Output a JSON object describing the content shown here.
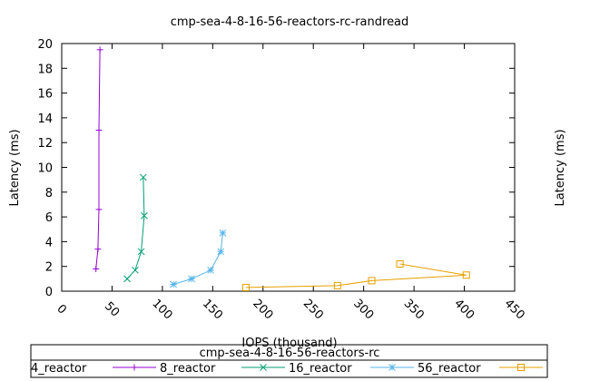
{
  "chart_data": {
    "type": "line",
    "title": "cmp-sea-4-8-16-56-reactors-rc-randread",
    "xlabel": "IOPS (thousand)",
    "ylabel": "Latency (ms)",
    "y2label": "Latency (ms)",
    "xlim": [
      0,
      450
    ],
    "ylim": [
      0,
      20
    ],
    "x_ticks": [
      0,
      50,
      100,
      150,
      200,
      250,
      300,
      350,
      400,
      450
    ],
    "y_ticks": [
      0,
      2,
      4,
      6,
      8,
      10,
      12,
      14,
      16,
      18,
      20
    ],
    "grid": false,
    "legend_title": "cmp-sea-4-8-16-56-reactors-rc",
    "legend_position": "bottom",
    "series": [
      {
        "name": "4_reactor",
        "color": "#9400d3",
        "marker": "plus",
        "x": [
          34,
          36,
          37,
          37,
          38
        ],
        "y": [
          1.8,
          3.4,
          6.6,
          13.0,
          19.5
        ]
      },
      {
        "name": "8_reactor",
        "color": "#009e73",
        "marker": "cross",
        "x": [
          65,
          73,
          79,
          82,
          81
        ],
        "y": [
          1.0,
          1.7,
          3.2,
          6.1,
          9.2
        ]
      },
      {
        "name": "16_reactor",
        "color": "#56b4e9",
        "marker": "star",
        "x": [
          111,
          129,
          148,
          158,
          160
        ],
        "y": [
          0.55,
          1.0,
          1.7,
          3.2,
          4.7
        ]
      },
      {
        "name": "56_reactor",
        "color": "#e69f00",
        "marker": "square",
        "x": [
          183,
          274,
          308,
          402,
          336
        ],
        "y": [
          0.3,
          0.45,
          0.85,
          1.3,
          2.2
        ]
      }
    ]
  }
}
